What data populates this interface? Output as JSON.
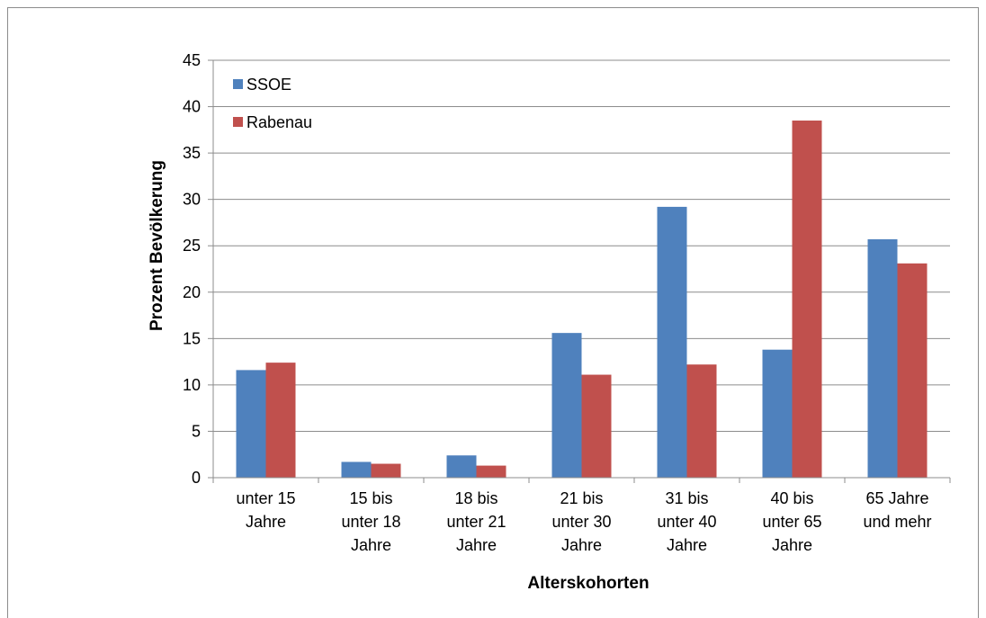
{
  "chart_data": {
    "type": "bar",
    "title": "",
    "xlabel": "Alterskohorten",
    "ylabel": "Prozent Bevölkerung",
    "ylim": [
      0,
      45
    ],
    "ytick_step": 5,
    "grid": true,
    "legend_position": "top-left",
    "categories": [
      [
        "unter 15",
        "Jahre"
      ],
      [
        "15 bis",
        "unter 18",
        "Jahre"
      ],
      [
        "18 bis",
        "unter 21",
        "Jahre"
      ],
      [
        "21 bis",
        "unter 30",
        "Jahre"
      ],
      [
        "31 bis",
        "unter 40",
        "Jahre"
      ],
      [
        "40 bis",
        "unter 65",
        "Jahre"
      ],
      [
        "65 Jahre",
        "und mehr"
      ]
    ],
    "series": [
      {
        "name": "SSOE",
        "color": "#4f81bd",
        "values": [
          11.6,
          1.7,
          2.4,
          15.6,
          29.2,
          13.8,
          25.7
        ]
      },
      {
        "name": "Rabenau",
        "color": "#c0504d",
        "values": [
          12.4,
          1.5,
          1.3,
          11.1,
          12.2,
          38.5,
          23.1
        ]
      }
    ]
  }
}
